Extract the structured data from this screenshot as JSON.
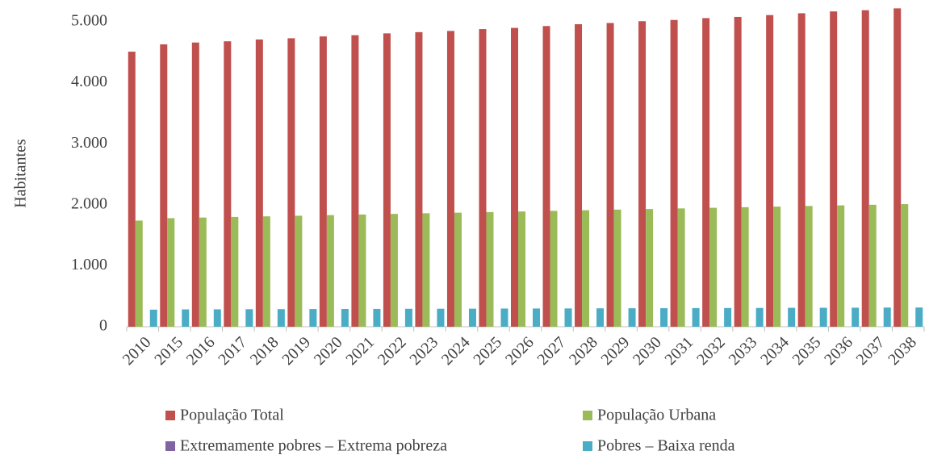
{
  "chart_data": {
    "type": "bar",
    "y_label": "Habitantes",
    "categories": [
      "2010",
      "2015",
      "2016",
      "2017",
      "2018",
      "2019",
      "2020",
      "2021",
      "2022",
      "2023",
      "2024",
      "2025",
      "2026",
      "2027",
      "2028",
      "2029",
      "2030",
      "2031",
      "2032",
      "2033",
      "2034",
      "2035",
      "2036",
      "2037",
      "2038"
    ],
    "series": [
      {
        "name": "População Total",
        "color": "#c0504d",
        "values": [
          4510,
          4630,
          4660,
          4680,
          4710,
          4730,
          4760,
          4780,
          4810,
          4830,
          4850,
          4880,
          4900,
          4930,
          4960,
          4980,
          5010,
          5030,
          5060,
          5080,
          5110,
          5140,
          5170,
          5190,
          5220
        ]
      },
      {
        "name": "População Urbana",
        "color": "#9bbb59",
        "values": [
          1740,
          1780,
          1790,
          1800,
          1810,
          1820,
          1830,
          1840,
          1850,
          1860,
          1870,
          1880,
          1890,
          1900,
          1910,
          1920,
          1930,
          1940,
          1950,
          1960,
          1970,
          1980,
          1990,
          2000,
          2010
        ]
      },
      {
        "name": "Extremamente pobres – Extrema pobreza",
        "color": "#8064a2",
        "values": [
          0,
          0,
          0,
          0,
          0,
          0,
          0,
          0,
          0,
          0,
          0,
          0,
          0,
          0,
          0,
          0,
          0,
          0,
          0,
          0,
          0,
          0,
          0,
          0,
          0
        ]
      },
      {
        "name": "Pobres – Baixa renda",
        "color": "#4bacc6",
        "values": [
          280,
          284,
          285,
          287,
          288,
          290,
          291,
          292,
          294,
          295,
          296,
          298,
          299,
          300,
          302,
          303,
          304,
          306,
          307,
          308,
          310,
          311,
          312,
          314,
          315
        ]
      }
    ],
    "ylim": [
      0,
      5250
    ],
    "yticks": [
      0,
      {
        "value": 1000,
        "label": "1.000"
      },
      {
        "value": 2000,
        "label": "2.000"
      },
      {
        "value": 3000,
        "label": "3.000"
      },
      {
        "value": 4000,
        "label": "4.000"
      },
      {
        "value": 5000,
        "label": "5.000"
      }
    ],
    "grid": false
  }
}
